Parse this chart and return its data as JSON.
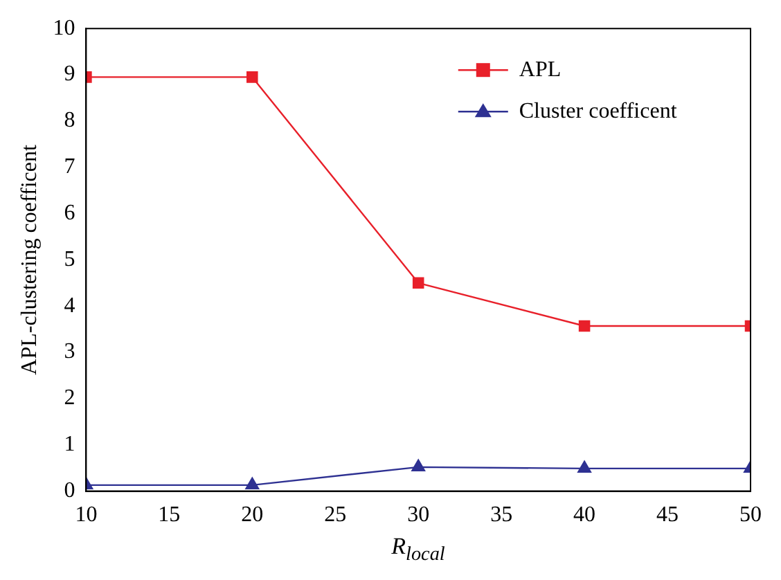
{
  "chart_data": {
    "type": "line",
    "xlabel": "R$_{local}$",
    "ylabel": "APL-clustering coefficent",
    "x": [
      10,
      20,
      30,
      40,
      50
    ],
    "series": [
      {
        "name": "APL",
        "color": "#e8202a",
        "values": [
          8.95,
          8.95,
          4.5,
          3.57,
          3.57
        ],
        "marker": "square"
      },
      {
        "name": "Cluster coefficent",
        "color": "#2e3192",
        "values": [
          0.13,
          0.13,
          0.52,
          0.49,
          0.49
        ],
        "marker": "triangle"
      }
    ],
    "xlim": [
      10,
      50
    ],
    "xticks": [
      10,
      15,
      20,
      25,
      30,
      35,
      40,
      45,
      50
    ],
    "ylim": [
      0,
      10
    ],
    "yticks": [
      0,
      1,
      2,
      3,
      4,
      5,
      6,
      7,
      8,
      9,
      10
    ],
    "grid": false,
    "legend": "top right",
    "line_style": "solid"
  }
}
